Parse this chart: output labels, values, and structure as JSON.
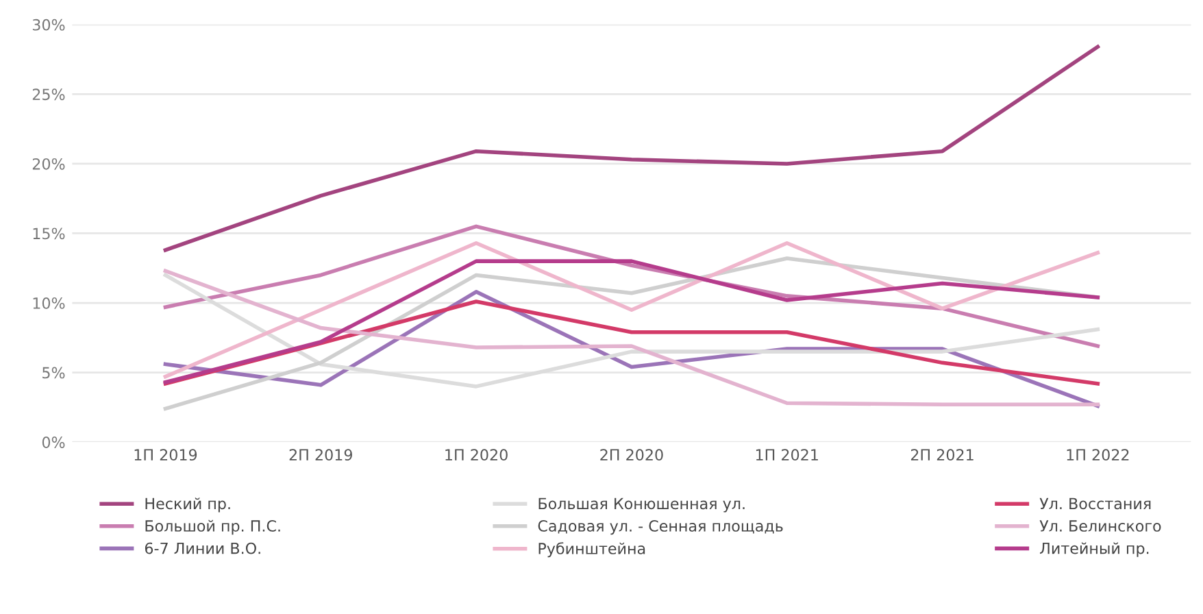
{
  "chart_data": {
    "type": "line",
    "categories": [
      "1П 2019",
      "2П 2019",
      "1П 2020",
      "2П 2020",
      "1П 2021",
      "2П 2021",
      "1П 2022"
    ],
    "ylim": [
      0,
      30
    ],
    "yticks": [
      {
        "value": 0,
        "label": "0%"
      },
      {
        "value": 5,
        "label": "5%"
      },
      {
        "value": 10,
        "label": "10%"
      },
      {
        "value": 15,
        "label": "15%"
      },
      {
        "value": 20,
        "label": "20%"
      },
      {
        "value": 25,
        "label": "25%"
      },
      {
        "value": 30,
        "label": "30%"
      }
    ],
    "grid": "y",
    "legend": "bottom",
    "marker": "none",
    "line_style": "solid",
    "series": [
      {
        "name": "Неский пр.",
        "color": "#a3447f",
        "values": [
          13.8,
          17.7,
          20.9,
          20.3,
          20.0,
          20.9,
          28.4
        ]
      },
      {
        "name": "Большой пр. П.С.",
        "color": "#c97db0",
        "values": [
          9.7,
          12.0,
          15.5,
          12.7,
          10.5,
          9.6,
          6.9
        ]
      },
      {
        "name": "6-7 Линии В.О.",
        "color": "#9b74b8",
        "values": [
          5.6,
          4.1,
          10.8,
          5.4,
          6.7,
          6.7,
          2.6
        ]
      },
      {
        "name": "Большая Конюшенная ул.",
        "color": "#dcdcdc",
        "values": [
          12.0,
          5.6,
          4.0,
          6.5,
          6.5,
          6.5,
          8.1
        ]
      },
      {
        "name": "Садовая ул. - Сенная площадь",
        "color": "#cfcfcf",
        "values": [
          2.4,
          5.7,
          12.0,
          10.7,
          13.2,
          11.8,
          10.4
        ]
      },
      {
        "name": "Рубинштейна",
        "color": "#efb6cc",
        "values": [
          4.7,
          9.5,
          14.3,
          9.5,
          14.3,
          9.6,
          13.6
        ]
      },
      {
        "name": "Ул. Восстания",
        "color": "#d33a68",
        "values": [
          4.2,
          7.1,
          10.1,
          7.9,
          7.9,
          5.7,
          4.2
        ]
      },
      {
        "name": "Ул. Белинского",
        "color": "#e3b3cf",
        "values": [
          12.3,
          8.2,
          6.8,
          6.9,
          2.8,
          2.7,
          2.7
        ]
      },
      {
        "name": "Литейный пр.",
        "color": "#b53c8c",
        "values": [
          4.3,
          7.2,
          13.0,
          13.0,
          10.2,
          11.4,
          10.4
        ]
      }
    ]
  }
}
